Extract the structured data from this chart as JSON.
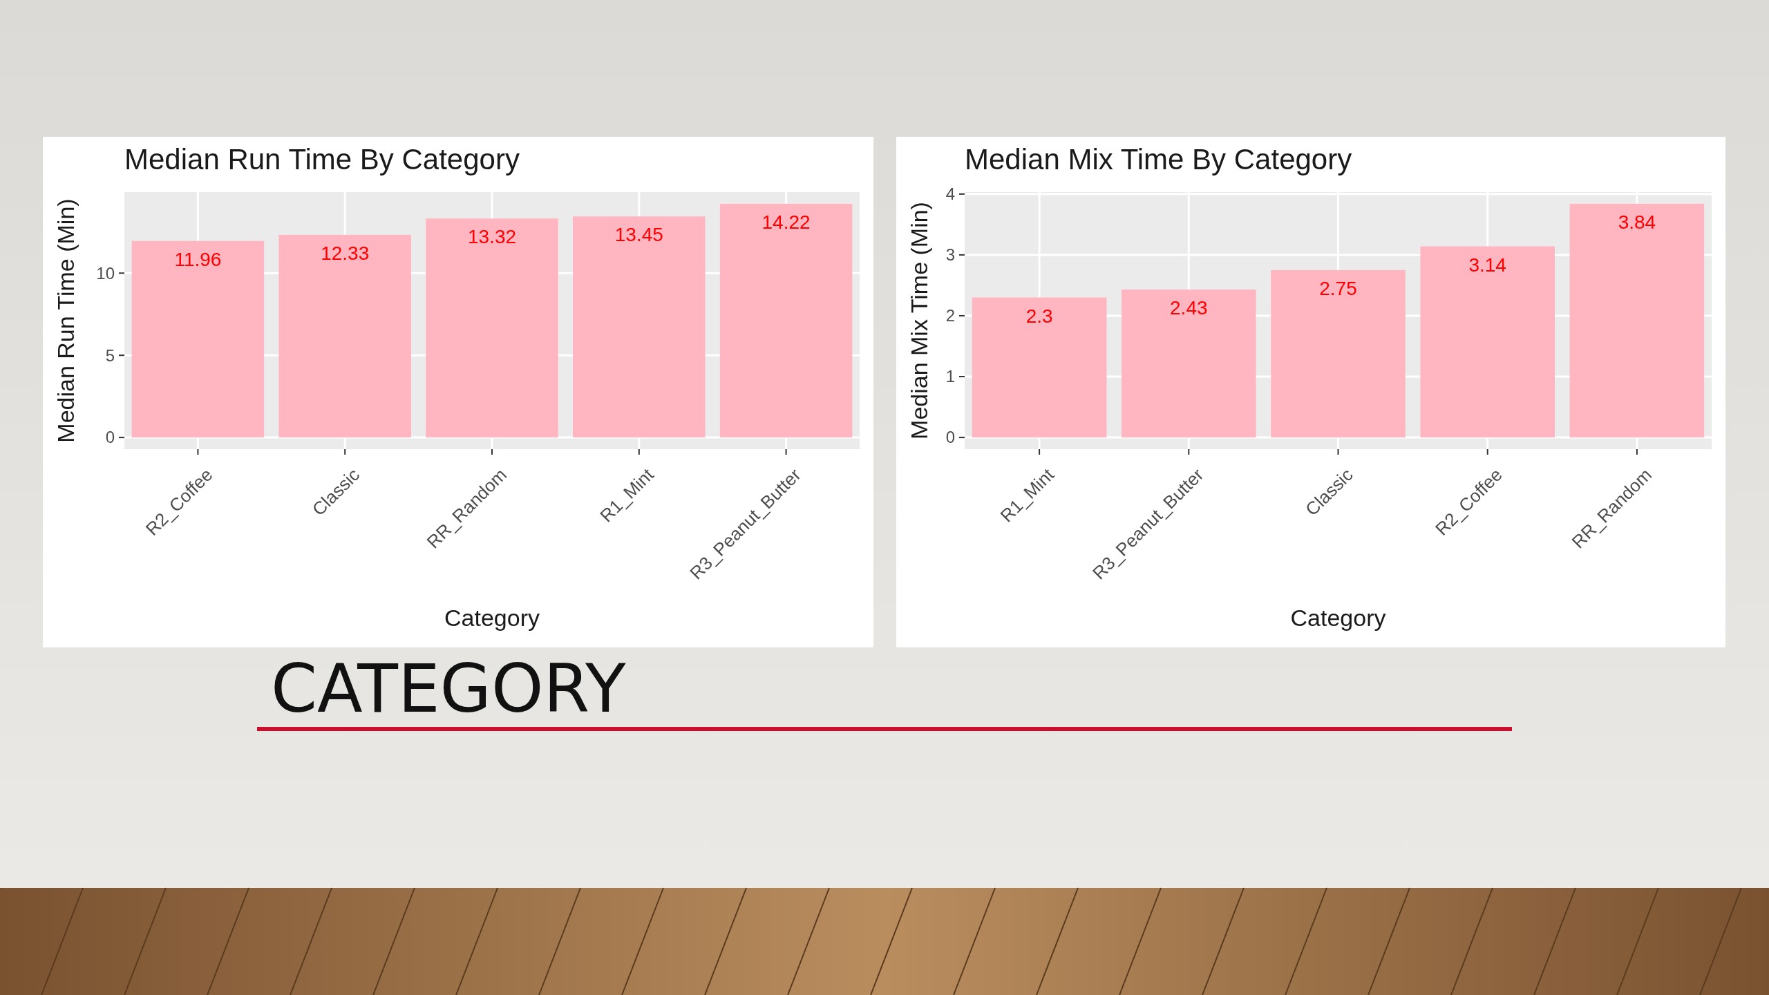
{
  "chart_data": [
    {
      "type": "bar",
      "title": "Median Run Time By Category",
      "xlabel": "Category",
      "ylabel": "Median Run Time (Min)",
      "categories": [
        "R2_Coffee",
        "Classic",
        "RR_Random",
        "R1_Mint",
        "R3_Peanut_Butter"
      ],
      "values": [
        11.96,
        12.33,
        13.32,
        13.45,
        14.22
      ],
      "color": "#ffb6c1",
      "ylim": [
        -0.711,
        14.931
      ],
      "yticks": [
        0,
        5,
        10
      ],
      "grid": true,
      "data_labels": true
    },
    {
      "type": "bar",
      "title": "Median Mix Time By Category",
      "xlabel": "Category",
      "ylabel": "Median Mix Time (Min)",
      "categories": [
        "R1_Mint",
        "R3_Peanut_Butter",
        "Classic",
        "R2_Coffee",
        "RR_Random"
      ],
      "values": [
        2.3,
        2.43,
        2.75,
        3.14,
        3.84
      ],
      "color": "#ffb6c1",
      "ylim": [
        -0.192,
        4.032
      ],
      "yticks": [
        0,
        1,
        2,
        3,
        4
      ],
      "grid": true,
      "data_labels": true
    },
    {
      "type": "other",
      "title": "CATEGORY"
    }
  ]
}
